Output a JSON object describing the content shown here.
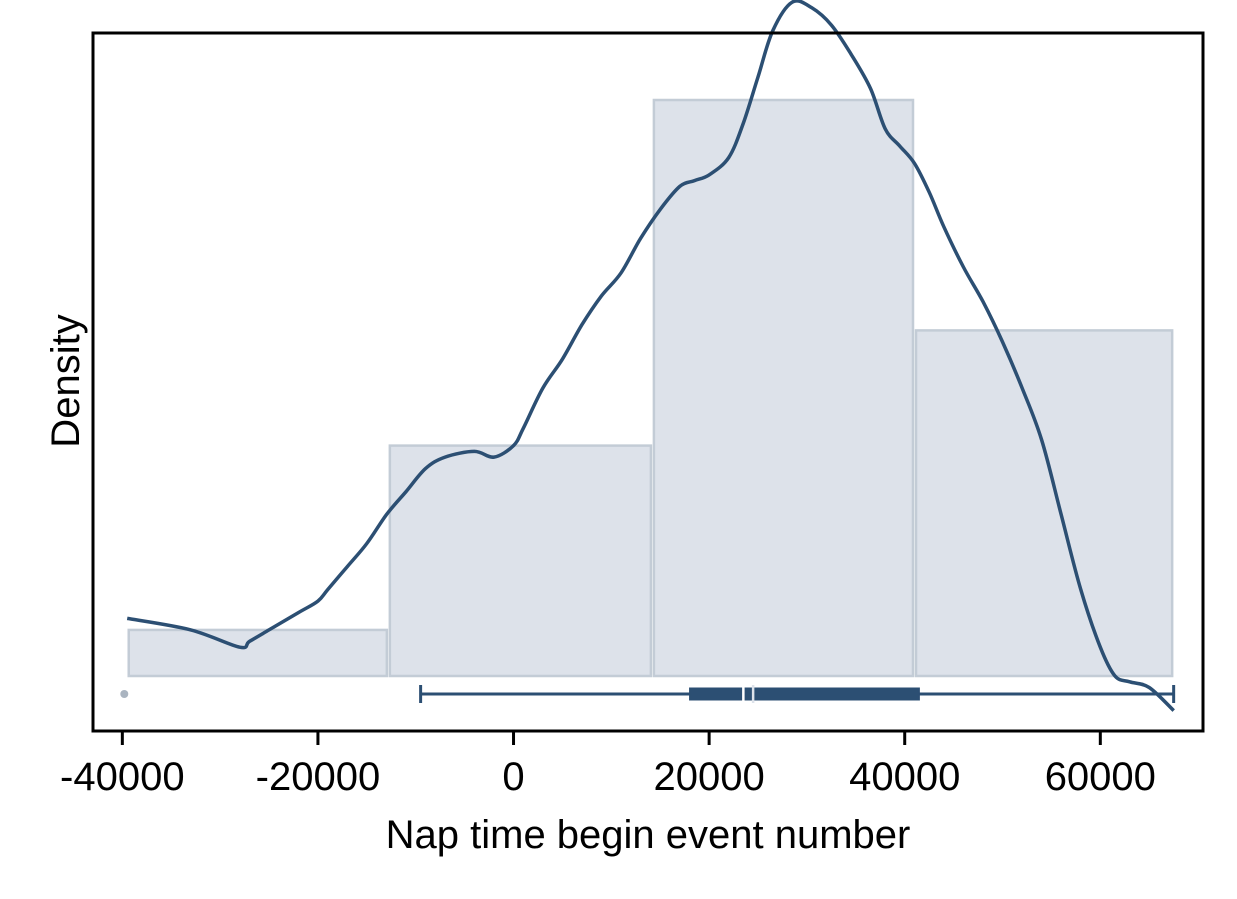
{
  "chart_data": {
    "type": "histogram",
    "title": "",
    "xlabel": "Nap time begin event number",
    "ylabel": "Density",
    "xlim": [
      -43000,
      70500
    ],
    "x_ticks": [
      -40000,
      -20000,
      0,
      20000,
      40000,
      60000
    ],
    "x_tick_labels": [
      "-40000",
      "-20000",
      "0",
      "20000",
      "40000",
      "60000"
    ],
    "y_ticks_shown": false,
    "histogram": {
      "bins": [
        {
          "start": -39500,
          "end": -12800,
          "density": 0.08
        },
        {
          "start": -12800,
          "end": 14200,
          "density": 0.4
        },
        {
          "start": 14200,
          "end": 41000,
          "density": 1.0
        },
        {
          "start": 41000,
          "end": 67500,
          "density": 0.6
        }
      ],
      "ylim": [
        0,
        1.06
      ],
      "fill_color": "#dde2ea",
      "edge_color": "#c3ccd6"
    },
    "density_curve": {
      "color": "#2c4f73",
      "x": [
        -39500,
        -33000,
        -28000,
        -27000,
        -25000,
        -22000,
        -20000,
        -19000,
        -17000,
        -15000,
        -13000,
        -11000,
        -9000,
        -7000,
        -4000,
        -2000,
        0,
        1000,
        3000,
        5000,
        7000,
        9000,
        11000,
        13000,
        15000,
        17000,
        18500,
        20000,
        22000,
        23500,
        25000,
        26500,
        28500,
        30500,
        32500,
        34500,
        36500,
        38000,
        39500,
        41000,
        42500,
        44000,
        46000,
        48000,
        50000,
        52000,
        54000,
        56000,
        58000,
        60000,
        61500,
        63000,
        65000,
        67500
      ],
      "y": [
        0.1,
        0.08,
        0.05,
        0.06,
        0.08,
        0.11,
        0.13,
        0.15,
        0.19,
        0.23,
        0.28,
        0.32,
        0.36,
        0.38,
        0.39,
        0.38,
        0.4,
        0.43,
        0.5,
        0.55,
        0.61,
        0.66,
        0.7,
        0.76,
        0.81,
        0.85,
        0.86,
        0.87,
        0.9,
        0.96,
        1.04,
        1.12,
        1.17,
        1.16,
        1.13,
        1.08,
        1.02,
        0.95,
        0.92,
        0.89,
        0.84,
        0.78,
        0.71,
        0.65,
        0.58,
        0.5,
        0.41,
        0.28,
        0.15,
        0.05,
        0.0,
        -0.01,
        -0.02,
        -0.06
      ]
    },
    "boxplot": {
      "color": "#2c4f73",
      "whisker_low": -9500,
      "q1": 18000,
      "median": 23500,
      "mean": 24500,
      "q3": 41500,
      "whisker_high": 67500,
      "outliers": [
        -39800
      ],
      "outlier_color": "#aab4c0"
    }
  }
}
